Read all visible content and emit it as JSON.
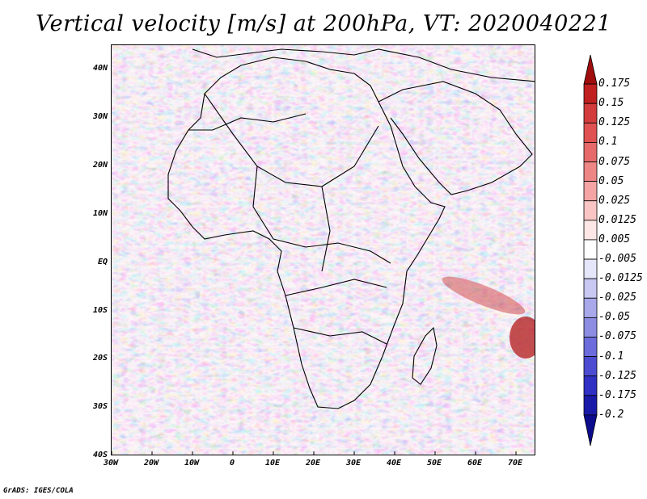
{
  "title": "Vertical velocity [m/s] at 200hPa, VT: 2020040221",
  "credit": "GrADS: IGES/COLA",
  "map": {
    "lat_labels": [
      "40N",
      "30N",
      "20N",
      "10N",
      "EQ",
      "10S",
      "20S",
      "30S",
      "40S"
    ],
    "lon_labels": [
      "30W",
      "20W",
      "10W",
      "0",
      "10E",
      "20E",
      "30E",
      "40E",
      "50E",
      "60E",
      "70E"
    ],
    "lat_range": [
      -40,
      45
    ],
    "lon_range": [
      -30,
      75
    ]
  },
  "colorbar": {
    "levels": [
      "0.175",
      "0.15",
      "0.125",
      "0.1",
      "0.075",
      "0.05",
      "0.025",
      "0.0125",
      "0.005",
      "-0.005",
      "-0.0125",
      "-0.025",
      "-0.05",
      "-0.075",
      "-0.1",
      "-0.125",
      "-0.175",
      "-0.2"
    ],
    "colors": [
      "#a00d0d",
      "#c02020",
      "#d23c3c",
      "#e05252",
      "#e66a6a",
      "#ee8686",
      "#f4a4a4",
      "#f8c4c4",
      "#fce6e6",
      "#ffffff",
      "#e6e6fa",
      "#c8c8f2",
      "#a8a8ea",
      "#8c8ce2",
      "#6c6cdc",
      "#4c4cd2",
      "#3030c4",
      "#1a1aa8",
      "#0c0c8c"
    ]
  },
  "colors": {
    "field_red": "#e87878",
    "field_blue": "#7a7adc",
    "coast": "#000000"
  }
}
